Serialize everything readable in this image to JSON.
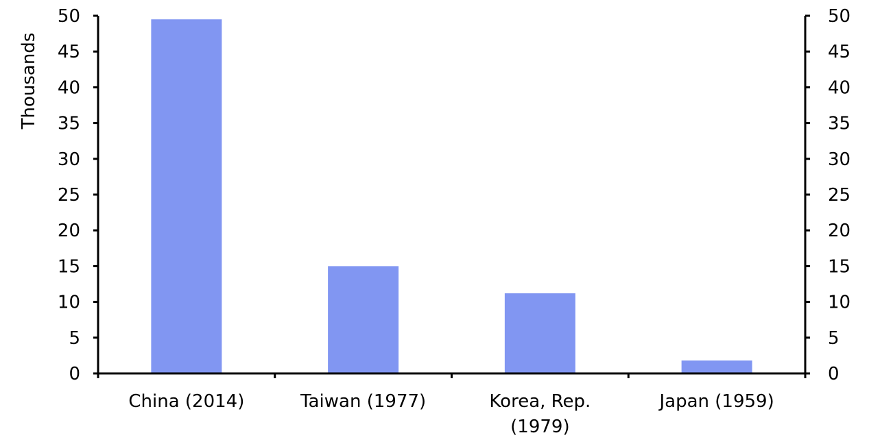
{
  "chart_data": {
    "type": "bar",
    "categories": [
      [
        "China (2014)"
      ],
      [
        "Taiwan (1977)"
      ],
      [
        "Korea, Rep.",
        "(1979)"
      ],
      [
        "Japan (1959)"
      ]
    ],
    "values": [
      49.5,
      15.0,
      11.2,
      1.8
    ],
    "ylabel": "Thousands",
    "ylim": [
      0,
      50
    ],
    "yticks": [
      0,
      5,
      10,
      15,
      20,
      25,
      30,
      35,
      40,
      45,
      50
    ],
    "secondary_y_axis": true,
    "grid": false,
    "bar_color": "#8196f2",
    "axis_color": "#000000"
  }
}
